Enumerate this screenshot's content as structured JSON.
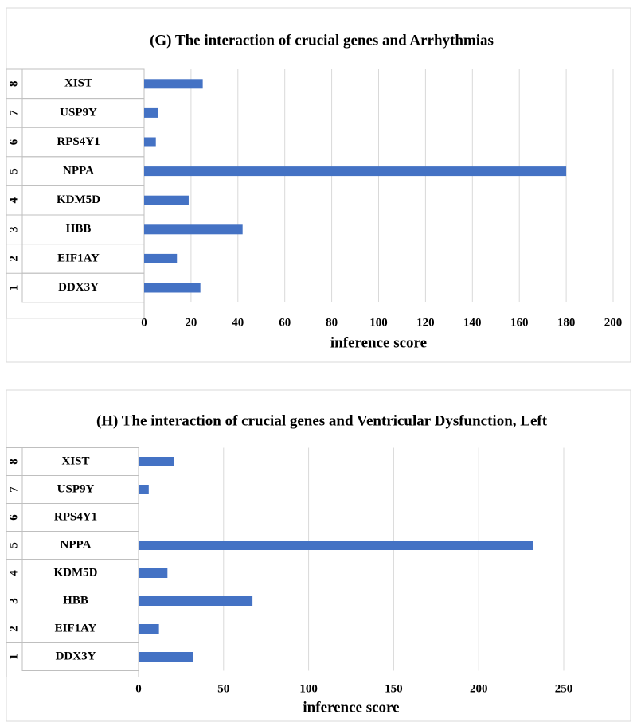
{
  "chart_data": [
    {
      "type": "bar",
      "orientation": "horizontal",
      "title": "(G) The interaction of crucial genes and Arrhythmias",
      "row_numbers": [
        "1",
        "2",
        "3",
        "4",
        "5",
        "6",
        "7",
        "8"
      ],
      "categories": [
        "DDX3Y",
        "EIF1AY",
        "HBB",
        "KDM5D",
        "NPPA",
        "RPS4Y1",
        "USP9Y",
        "XIST"
      ],
      "values": [
        24,
        14,
        42,
        19,
        180,
        5,
        6,
        25
      ],
      "color": "#4472c4",
      "xlabel": "inference score",
      "xlim": [
        0,
        200
      ],
      "xticks": [
        0,
        20,
        40,
        60,
        80,
        100,
        120,
        140,
        160,
        180,
        200
      ],
      "grid": true
    },
    {
      "type": "bar",
      "orientation": "horizontal",
      "title": "(H) The interaction of crucial genes and Ventricular Dysfunction, Left",
      "row_numbers": [
        "1",
        "2",
        "3",
        "4",
        "5",
        "6",
        "7",
        "8"
      ],
      "categories": [
        "DDX3Y",
        "EIF1AY",
        "HBB",
        "KDM5D",
        "NPPA",
        "RPS4Y1",
        "USP9Y",
        "XIST"
      ],
      "values": [
        32,
        12,
        67,
        17,
        232,
        0,
        6,
        21
      ],
      "color": "#4472c4",
      "xlabel": "inference score",
      "xlim": [
        0,
        250
      ],
      "xticks": [
        0,
        50,
        100,
        150,
        200,
        250
      ],
      "grid": true
    }
  ]
}
